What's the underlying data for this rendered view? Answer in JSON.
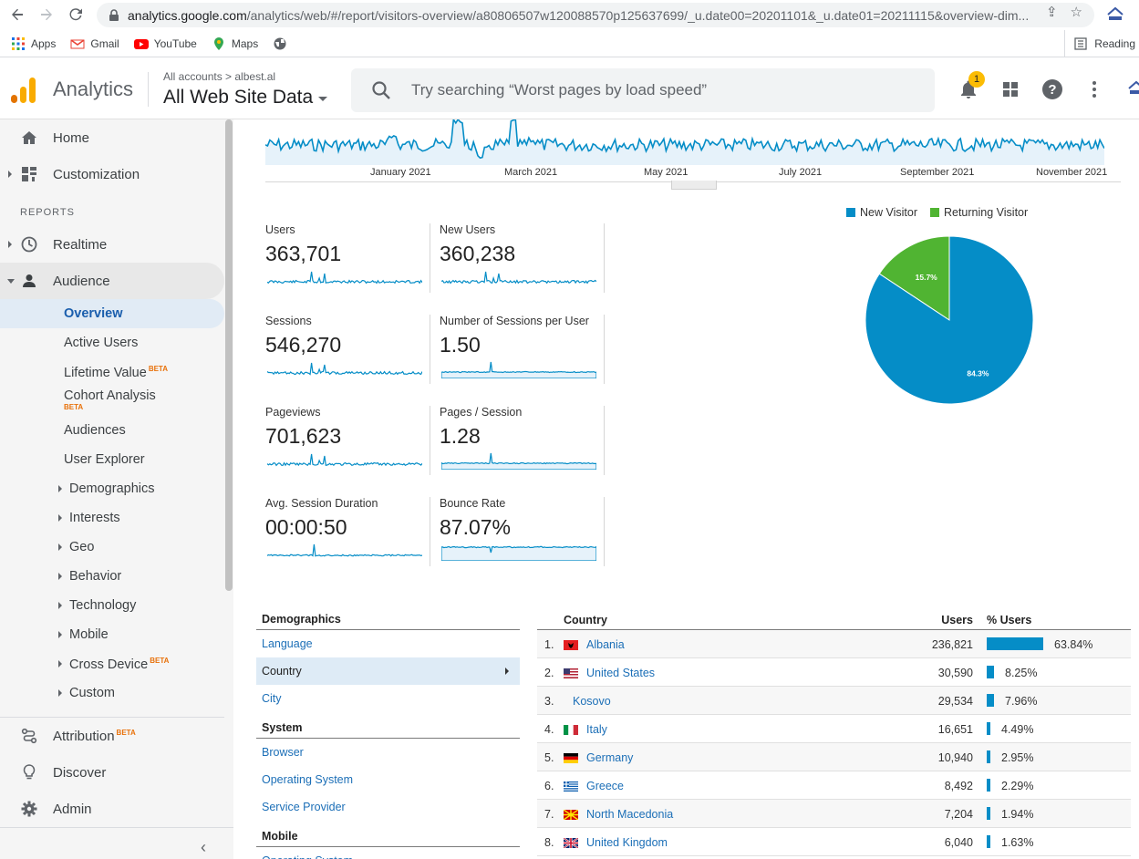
{
  "browser": {
    "url_host": "analytics.google.com",
    "url_path": "/analytics/web/#/report/visitors-overview/a80806507w120088570p125637699/_u.date00=20201101&_u.date01=20211115&overview-dim...",
    "bookmarks": [
      "Apps",
      "Gmail",
      "YouTube",
      "Maps"
    ],
    "reading_list": "Reading"
  },
  "header": {
    "product": "Analytics",
    "breadcrumb": "All accounts > albest.al",
    "view": "All Web Site Data",
    "search_placeholder": "Try searching “Worst pages by load speed”",
    "notification_count": "1"
  },
  "sidebar": {
    "home": "Home",
    "customization": "Customization",
    "reports_heading": "REPORTS",
    "realtime": "Realtime",
    "audience": "Audience",
    "audience_items": [
      {
        "label": "Overview",
        "beta": ""
      },
      {
        "label": "Active Users",
        "beta": ""
      },
      {
        "label": "Lifetime Value",
        "beta": "BETA"
      },
      {
        "label": "Cohort Analysis",
        "beta": "BETA"
      },
      {
        "label": "Audiences",
        "beta": ""
      },
      {
        "label": "User Explorer",
        "beta": ""
      }
    ],
    "audience_groups": [
      "Demographics",
      "Interests",
      "Geo",
      "Behavior",
      "Technology",
      "Mobile",
      "Cross Device",
      "Custom"
    ],
    "cross_device_beta": "BETA",
    "attribution": "Attribution",
    "attribution_beta": "BETA",
    "discover": "Discover",
    "admin": "Admin"
  },
  "overview_chart": {
    "months": [
      "January 2021",
      "March 2021",
      "May 2021",
      "July 2021",
      "September 2021",
      "November 2021"
    ]
  },
  "metrics": [
    {
      "label": "Users",
      "value": "363,701"
    },
    {
      "label": "New Users",
      "value": "360,238"
    },
    {
      "label": "Sessions",
      "value": "546,270"
    },
    {
      "label": "Number of Sessions per User",
      "value": "1.50"
    },
    {
      "label": "Pageviews",
      "value": "701,623"
    },
    {
      "label": "Pages / Session",
      "value": "1.28"
    },
    {
      "label": "Avg. Session Duration",
      "value": "00:00:50"
    },
    {
      "label": "Bounce Rate",
      "value": "87.07%"
    }
  ],
  "chart_data": {
    "type": "pie",
    "series": [
      {
        "name": "New Visitor",
        "value": 84.3,
        "label": "84.3%",
        "color": "#058dc7"
      },
      {
        "name": "Returning Visitor",
        "value": 15.7,
        "label": "15.7%",
        "color": "#50b432"
      }
    ]
  },
  "dimensions": {
    "groups": [
      {
        "heading": "Demographics",
        "items": [
          "Language",
          "Country",
          "City"
        ],
        "selected": "Country"
      },
      {
        "heading": "System",
        "items": [
          "Browser",
          "Operating System",
          "Service Provider"
        ],
        "selected": ""
      },
      {
        "heading": "Mobile",
        "items": [
          "Operating System"
        ],
        "selected": ""
      }
    ]
  },
  "country_table": {
    "headers": {
      "country": "Country",
      "users": "Users",
      "pct": "% Users"
    },
    "rows": [
      {
        "rank": "1.",
        "country": "Albania",
        "users": "236,821",
        "pct": "63.84%",
        "share": 63.84,
        "flag": "albania-flag-icon"
      },
      {
        "rank": "2.",
        "country": "United States",
        "users": "30,590",
        "pct": "8.25%",
        "share": 8.25,
        "flag": "us-flag-icon"
      },
      {
        "rank": "3.",
        "country": "Kosovo",
        "users": "29,534",
        "pct": "7.96%",
        "share": 7.96,
        "flag": ""
      },
      {
        "rank": "4.",
        "country": "Italy",
        "users": "16,651",
        "pct": "4.49%",
        "share": 4.49,
        "flag": "italy-flag-icon"
      },
      {
        "rank": "5.",
        "country": "Germany",
        "users": "10,940",
        "pct": "2.95%",
        "share": 2.95,
        "flag": "germany-flag-icon"
      },
      {
        "rank": "6.",
        "country": "Greece",
        "users": "8,492",
        "pct": "2.29%",
        "share": 2.29,
        "flag": "greece-flag-icon"
      },
      {
        "rank": "7.",
        "country": "North Macedonia",
        "users": "7,204",
        "pct": "1.94%",
        "share": 1.94,
        "flag": "north-macedonia-flag-icon"
      },
      {
        "rank": "8.",
        "country": "United Kingdom",
        "users": "6,040",
        "pct": "1.63%",
        "share": 1.63,
        "flag": "uk-flag-icon"
      }
    ]
  },
  "colors": {
    "accent": "#058dc7",
    "returning": "#50b432",
    "link": "#1c6fb7",
    "ga_orange": "#f9ab00"
  }
}
